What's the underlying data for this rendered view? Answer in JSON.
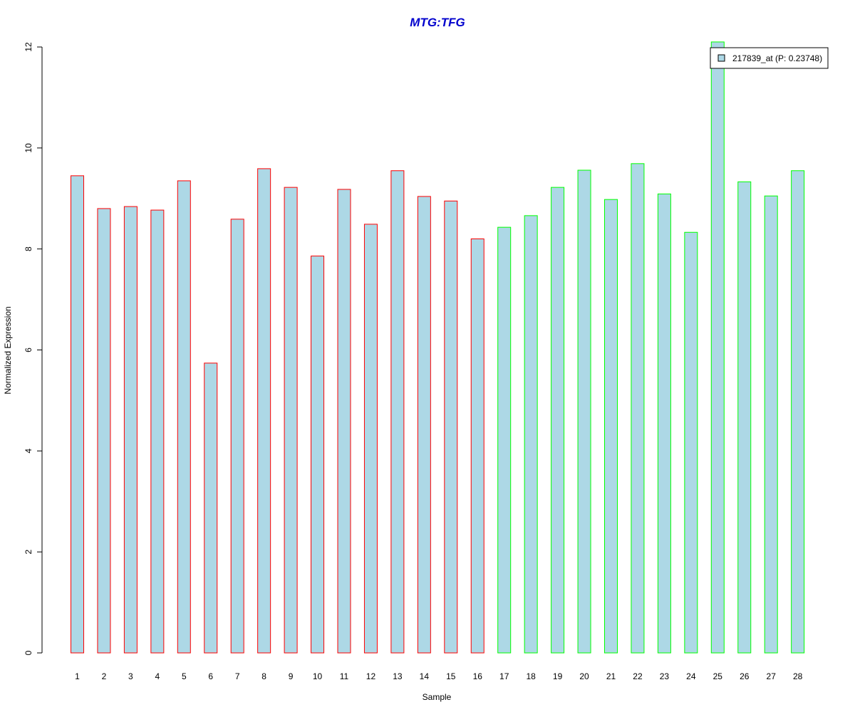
{
  "chart_data": {
    "type": "bar",
    "title": "MTG:TFG",
    "xlabel": "Sample",
    "ylabel": "Normalized Expression",
    "ylim": [
      0,
      12
    ],
    "yticks": [
      0,
      2,
      4,
      6,
      8,
      10,
      12
    ],
    "grid": false,
    "categories": [
      "1",
      "2",
      "3",
      "4",
      "5",
      "6",
      "7",
      "8",
      "9",
      "10",
      "11",
      "12",
      "13",
      "14",
      "15",
      "16",
      "17",
      "18",
      "19",
      "20",
      "21",
      "22",
      "23",
      "24",
      "25",
      "26",
      "27",
      "28"
    ],
    "values": [
      9.45,
      8.8,
      8.84,
      8.77,
      9.35,
      5.74,
      8.59,
      9.59,
      9.22,
      7.86,
      9.18,
      8.49,
      9.55,
      9.04,
      8.95,
      8.2,
      8.43,
      8.66,
      9.22,
      9.56,
      8.98,
      9.69,
      9.09,
      8.33,
      12.1,
      9.33,
      9.05,
      9.55
    ],
    "groups": [
      "red",
      "red",
      "red",
      "red",
      "red",
      "red",
      "red",
      "red",
      "red",
      "red",
      "red",
      "red",
      "red",
      "red",
      "red",
      "red",
      "green",
      "green",
      "green",
      "green",
      "green",
      "green",
      "green",
      "green",
      "green",
      "green",
      "green",
      "green"
    ],
    "colors": {
      "fill": "#add8e6",
      "red": "#ff0000",
      "green": "#00ff00",
      "title": "#0000cd"
    },
    "legend": {
      "placement": "top-right",
      "label": "217839_at (P: 0.23748)"
    }
  }
}
